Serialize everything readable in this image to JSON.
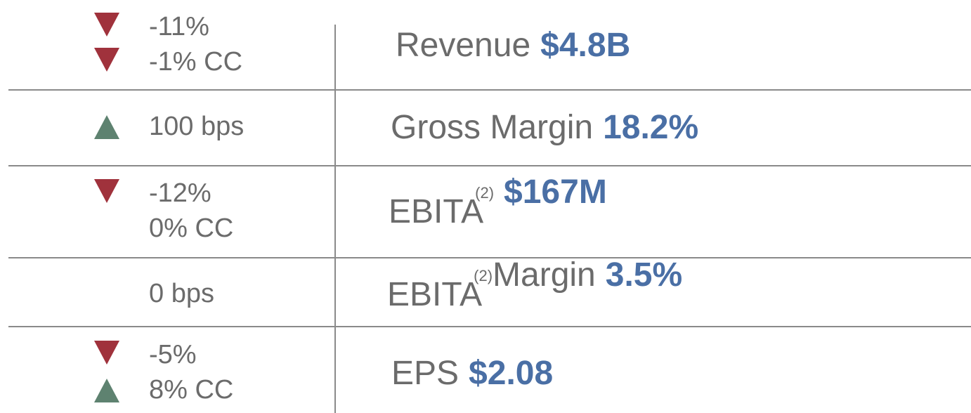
{
  "rows": [
    {
      "changes": [
        {
          "arrow": "down",
          "text": "-11%"
        },
        {
          "arrow": "down",
          "text": "-1% CC"
        }
      ],
      "label": "Revenue",
      "value": "$4.8B"
    },
    {
      "changes": [
        {
          "arrow": "up",
          "text": "100 bps"
        }
      ],
      "label": "Gross Margin",
      "value": "18.2%"
    },
    {
      "changes": [
        {
          "arrow": "down",
          "text": "-12%"
        },
        {
          "text": "0% CC"
        }
      ],
      "label": "EBITA",
      "note": "(2)",
      "value": "$167M"
    },
    {
      "changes": [
        {
          "text": "0 bps"
        }
      ],
      "label": "EBITA",
      "note": "(2)",
      "label2": "Margin",
      "value": "3.5%"
    },
    {
      "changes": [
        {
          "arrow": "down",
          "text": "-5%"
        },
        {
          "arrow": "up",
          "text": "8% CC"
        }
      ],
      "label": "EPS",
      "value": "$2.08"
    }
  ]
}
